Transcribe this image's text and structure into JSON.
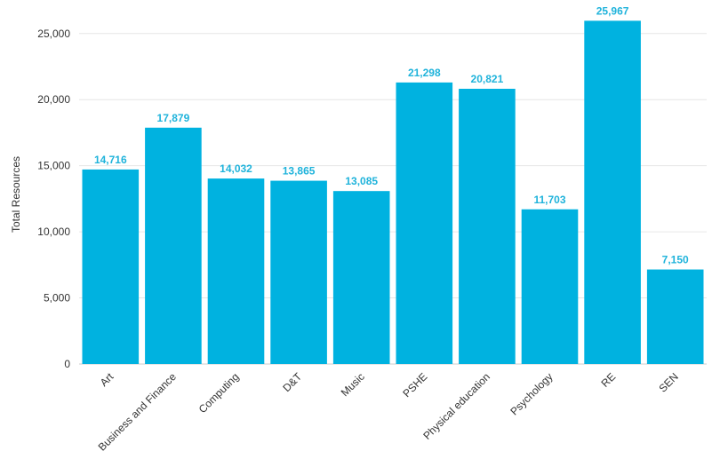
{
  "chart_data": {
    "type": "bar",
    "title": "",
    "xlabel": "",
    "ylabel": "Total Resources",
    "ylim": [
      0,
      27000
    ],
    "yticks": [
      0,
      5000,
      10000,
      15000,
      20000,
      25000
    ],
    "ytick_labels": [
      "0",
      "5,000",
      "10,000",
      "15,000",
      "20,000",
      "25,000"
    ],
    "categories": [
      "Art",
      "Business and Finance",
      "Computing",
      "D&T",
      "Music",
      "PSHE",
      "Physical education",
      "Psychology",
      "RE",
      "SEN"
    ],
    "values": [
      14716,
      17879,
      14032,
      13865,
      13085,
      21298,
      20821,
      11703,
      25967,
      7150
    ],
    "value_labels": [
      "14,716",
      "17,879",
      "14,032",
      "13,865",
      "13,085",
      "21,298",
      "20,821",
      "11,703",
      "25,967",
      "7,150"
    ],
    "grid": true,
    "legend": "none",
    "colors": {
      "bar": "#00b2e0",
      "label": "#1fb3db"
    }
  }
}
